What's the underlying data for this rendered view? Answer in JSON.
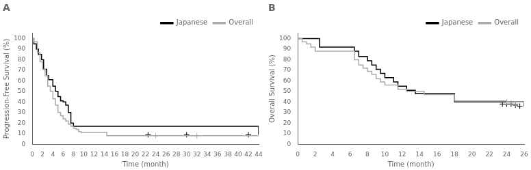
{
  "chart_data": [
    {
      "type": "line",
      "title": "A",
      "xlabel": "Time (month)",
      "ylabel": "Progression-Free Survival (%)",
      "xlim": [
        0,
        44
      ],
      "ylim": [
        0,
        105
      ],
      "xticks": [
        0,
        2,
        4,
        6,
        8,
        10,
        12,
        14,
        16,
        18,
        20,
        22,
        24,
        26,
        28,
        30,
        32,
        34,
        36,
        38,
        40,
        42,
        44
      ],
      "yticks": [
        0,
        10,
        20,
        30,
        40,
        50,
        60,
        70,
        80,
        90,
        100
      ],
      "grid": false,
      "legend": "upper right",
      "line_style": "steps-post",
      "series": [
        {
          "name": "Overall",
          "color": "#aaaaaa",
          "marker": "+",
          "x": [
            0,
            0.3,
            1.0,
            1.5,
            2.0,
            2.5,
            3.0,
            3.5,
            4.0,
            4.5,
            5.0,
            5.5,
            6.0,
            6.5,
            7.0,
            7.5,
            8.0,
            8.5,
            9.0,
            9.5,
            10.0,
            12.0,
            14.5,
            44
          ],
          "values": [
            100,
            97,
            87,
            78,
            71,
            65,
            55,
            50,
            43,
            37,
            30,
            27,
            24,
            22,
            19,
            17,
            15,
            14,
            12,
            11,
            11,
            11,
            8,
            8
          ],
          "censor_x": [
            24.0,
            32.0
          ],
          "censor_y": [
            8,
            8
          ]
        },
        {
          "name": "Japanese",
          "color": "#000000",
          "marker": "+",
          "x": [
            0,
            0.3,
            0.8,
            1.2,
            1.8,
            2.2,
            2.8,
            3.2,
            4.0,
            4.5,
            5.0,
            5.5,
            6.0,
            6.5,
            7.0,
            7.5,
            8.0,
            14.0,
            44
          ],
          "values": [
            100,
            95,
            90,
            85,
            80,
            71,
            65,
            61,
            55,
            50,
            45,
            41,
            40,
            37,
            30,
            20,
            17,
            17,
            9
          ],
          "censor_x": [
            22.5,
            30.0,
            42.0
          ],
          "censor_y": [
            9,
            9,
            9
          ]
        }
      ]
    },
    {
      "type": "line",
      "title": "B",
      "xlabel": "Time (month)",
      "ylabel": "Overall Survival (%)",
      "xlim": [
        0,
        26
      ],
      "ylim": [
        0,
        105
      ],
      "xticks": [
        0,
        2,
        4,
        6,
        8,
        10,
        12,
        14,
        16,
        18,
        20,
        22,
        24,
        26
      ],
      "yticks": [
        0,
        10,
        20,
        30,
        40,
        50,
        60,
        70,
        80,
        90,
        100
      ],
      "grid": false,
      "legend": "upper right",
      "line_style": "steps-post",
      "series": [
        {
          "name": "Overall",
          "color": "#aaaaaa",
          "marker": "+",
          "x": [
            0,
            0.5,
            1.0,
            1.5,
            2.0,
            6.0,
            6.5,
            7.0,
            7.5,
            8.0,
            8.5,
            9.0,
            9.5,
            10.0,
            10.5,
            11.0,
            11.5,
            12.0,
            12.5,
            13.0,
            14.0,
            14.5,
            15.0,
            18.0,
            20.0,
            24.0,
            26
          ],
          "values": [
            100,
            97,
            95,
            92,
            88,
            88,
            80,
            75,
            72,
            69,
            66,
            62,
            59,
            56,
            56,
            56,
            52,
            52,
            50,
            50,
            50,
            47,
            47,
            41,
            41,
            40,
            37
          ],
          "censor_x": [
            24.0,
            24.5,
            25.0
          ],
          "censor_y": [
            40,
            39,
            38
          ]
        },
        {
          "name": "Japanese",
          "color": "#000000",
          "marker": "+",
          "x": [
            0,
            2.0,
            2.5,
            6.0,
            6.5,
            7.0,
            7.5,
            8.0,
            8.5,
            9.0,
            9.5,
            10.0,
            10.5,
            11.0,
            11.5,
            12.0,
            12.5,
            13.0,
            13.5,
            14.0,
            18.0,
            19.0,
            26
          ],
          "values": [
            100,
            100,
            92,
            92,
            88,
            83,
            83,
            79,
            75,
            71,
            67,
            63,
            63,
            59,
            55,
            55,
            51,
            51,
            48,
            48,
            40,
            40,
            36
          ],
          "censor_x": [
            23.5,
            24.0,
            24.5,
            25.0,
            25.5
          ],
          "censor_y": [
            38,
            38,
            38,
            37,
            36
          ]
        }
      ]
    }
  ]
}
